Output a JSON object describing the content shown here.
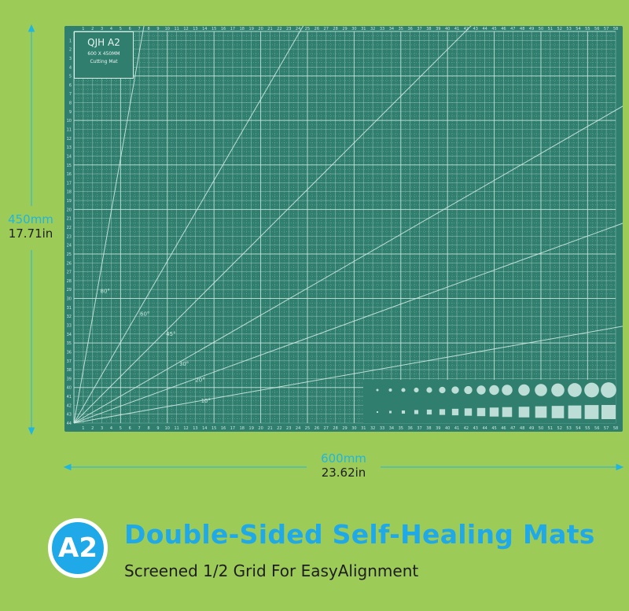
{
  "mat": {
    "brand": "QJH A2",
    "size_text": "600 X 450MM",
    "name_text": "Cutting Mat",
    "color": "#2f7e6e",
    "line_color": "#cde9e2",
    "angle_labels": [
      "80°",
      "60°",
      "45°",
      "30°",
      "20°",
      "10°"
    ]
  },
  "dimensions": {
    "height_mm": "450mm",
    "height_in": "17.71in",
    "width_mm": "600mm",
    "width_in": "23.62in",
    "accent": "#1fb6e0"
  },
  "caption": {
    "badge": "A2",
    "title": "Double-Sided Self-Healing Mats",
    "subtitle": "Screened 1/2 Grid For EasyAlignment",
    "accent": "#1fa9e8"
  },
  "background": "#9ccb58"
}
